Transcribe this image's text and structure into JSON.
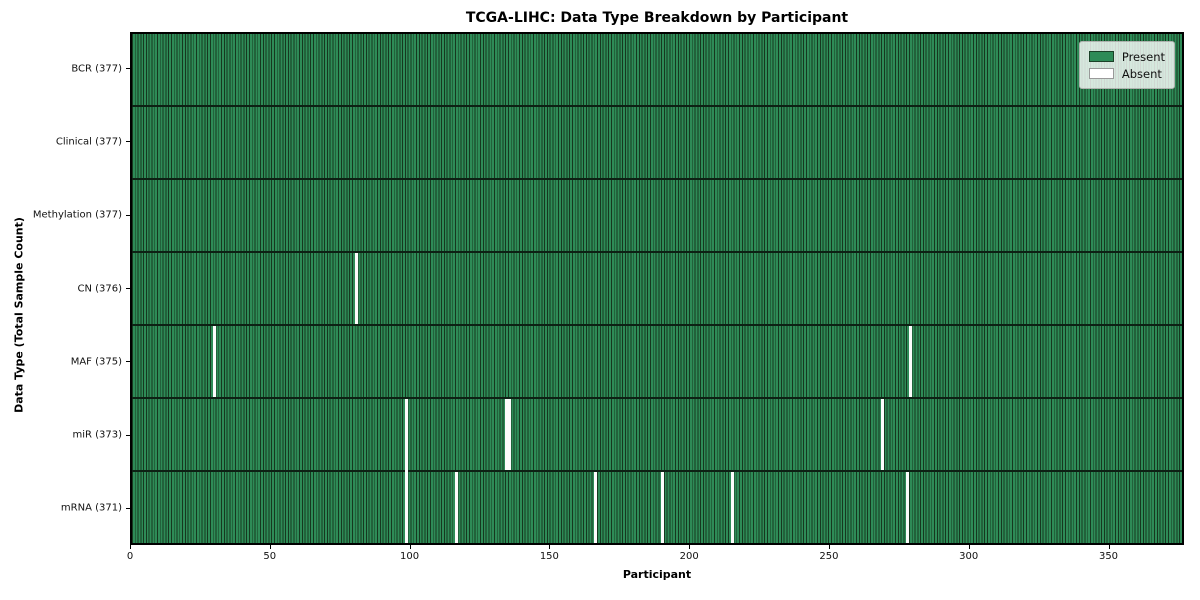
{
  "chart_data": {
    "type": "heatmap",
    "title": "TCGA-LIHC: Data Type Breakdown by Participant",
    "xlabel": "Participant",
    "ylabel": "Data Type (Total Sample Count)",
    "xlim": [
      0,
      377
    ],
    "n_participants": 377,
    "x_ticks": [
      0,
      50,
      100,
      150,
      200,
      250,
      300,
      350
    ],
    "grid": false,
    "legend_position": "upper right",
    "legend": [
      {
        "label": "Present",
        "color": "#2e8b57",
        "edge": "#1b4027"
      },
      {
        "label": "Absent",
        "color": "#ffffff",
        "edge": "#999999"
      }
    ],
    "colors": {
      "present_fill": "#2e8b57",
      "cell_edge": "#16381f",
      "row_divider": "#0d2114",
      "absent_fill": "#fcfcfc",
      "plot_border": "#000000",
      "background": "#ffffff"
    },
    "rows": [
      {
        "label": "BCR (377)",
        "data_type": "BCR",
        "present_count": 377,
        "absent_participants": []
      },
      {
        "label": "Clinical (377)",
        "data_type": "Clinical",
        "present_count": 377,
        "absent_participants": []
      },
      {
        "label": "Methylation (377)",
        "data_type": "Methylation",
        "present_count": 377,
        "absent_participants": []
      },
      {
        "label": "CN (376)",
        "data_type": "CN",
        "present_count": 376,
        "absent_participants": [
          80
        ]
      },
      {
        "label": "MAF (375)",
        "data_type": "MAF",
        "present_count": 375,
        "absent_participants": [
          29,
          279
        ]
      },
      {
        "label": "miR (373)",
        "data_type": "miR",
        "present_count": 373,
        "absent_participants": [
          98,
          134,
          135,
          269
        ]
      },
      {
        "label": "mRNA (371)",
        "data_type": "mRNA",
        "present_count": 371,
        "absent_participants": [
          98,
          116,
          166,
          190,
          215,
          278
        ]
      }
    ]
  }
}
